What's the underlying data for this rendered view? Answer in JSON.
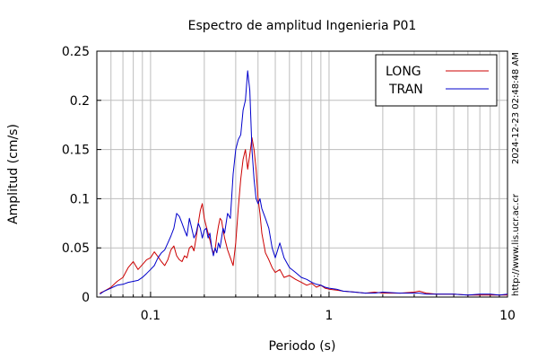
{
  "chart_data": {
    "type": "line",
    "title": "Espectro de amplitud Ingenieria P01",
    "xlabel": "Periodo (s)",
    "ylabel": "Amplitud (cm/s)",
    "xscale": "log",
    "xlim": [
      0.05,
      10
    ],
    "ylim": [
      0,
      0.25
    ],
    "x_ticks": [
      0.1,
      1,
      10
    ],
    "x_tick_labels": [
      "0.1",
      "1",
      "10"
    ],
    "y_ticks": [
      0,
      0.05,
      0.1,
      0.15,
      0.2,
      0.25
    ],
    "y_tick_labels": [
      "0",
      "0.05",
      "0.1",
      "0.15",
      "0.2",
      "0.25"
    ],
    "grid": true,
    "legend_position": "top-right",
    "timestamp": "2024-12-23 02:48:48 AM",
    "source_url": "http://www.lis.ucr.ac.cr",
    "series": [
      {
        "name": "LONG",
        "color": "#cc0000",
        "x": [
          0.052,
          0.055,
          0.06,
          0.065,
          0.07,
          0.075,
          0.08,
          0.085,
          0.09,
          0.095,
          0.1,
          0.105,
          0.11,
          0.115,
          0.12,
          0.125,
          0.13,
          0.135,
          0.14,
          0.145,
          0.15,
          0.155,
          0.16,
          0.165,
          0.17,
          0.175,
          0.18,
          0.185,
          0.19,
          0.195,
          0.2,
          0.205,
          0.21,
          0.215,
          0.22,
          0.225,
          0.23,
          0.235,
          0.24,
          0.245,
          0.25,
          0.255,
          0.26,
          0.27,
          0.28,
          0.29,
          0.3,
          0.31,
          0.32,
          0.33,
          0.34,
          0.35,
          0.36,
          0.37,
          0.38,
          0.39,
          0.4,
          0.41,
          0.42,
          0.44,
          0.46,
          0.48,
          0.5,
          0.53,
          0.56,
          0.6,
          0.65,
          0.7,
          0.75,
          0.8,
          0.85,
          0.9,
          0.95,
          1.0,
          1.1,
          1.2,
          1.4,
          1.6,
          1.8,
          2.0,
          2.5,
          3.0,
          3.2,
          3.5,
          4.0,
          5.0,
          6.0,
          7.0,
          8.0,
          9.0,
          10.0
        ],
        "values": [
          0.004,
          0.006,
          0.01,
          0.016,
          0.02,
          0.03,
          0.036,
          0.028,
          0.033,
          0.038,
          0.04,
          0.046,
          0.041,
          0.036,
          0.032,
          0.038,
          0.048,
          0.052,
          0.042,
          0.038,
          0.036,
          0.042,
          0.04,
          0.05,
          0.052,
          0.047,
          0.06,
          0.075,
          0.088,
          0.095,
          0.08,
          0.072,
          0.065,
          0.058,
          0.05,
          0.045,
          0.048,
          0.062,
          0.072,
          0.08,
          0.078,
          0.068,
          0.06,
          0.048,
          0.04,
          0.032,
          0.055,
          0.09,
          0.12,
          0.14,
          0.15,
          0.13,
          0.145,
          0.162,
          0.15,
          0.13,
          0.1,
          0.085,
          0.065,
          0.045,
          0.038,
          0.03,
          0.025,
          0.028,
          0.02,
          0.022,
          0.018,
          0.015,
          0.012,
          0.014,
          0.01,
          0.012,
          0.009,
          0.008,
          0.007,
          0.006,
          0.005,
          0.004,
          0.005,
          0.004,
          0.004,
          0.005,
          0.006,
          0.004,
          0.003,
          0.003,
          0.002,
          0.002,
          0.002,
          0.002,
          0.002
        ]
      },
      {
        "name": "TRAN",
        "color": "#0000cc",
        "x": [
          0.052,
          0.055,
          0.06,
          0.065,
          0.07,
          0.075,
          0.08,
          0.085,
          0.09,
          0.095,
          0.1,
          0.105,
          0.11,
          0.115,
          0.12,
          0.125,
          0.13,
          0.135,
          0.14,
          0.145,
          0.15,
          0.155,
          0.16,
          0.165,
          0.17,
          0.175,
          0.18,
          0.185,
          0.19,
          0.195,
          0.2,
          0.205,
          0.21,
          0.215,
          0.22,
          0.225,
          0.23,
          0.235,
          0.24,
          0.245,
          0.25,
          0.255,
          0.26,
          0.27,
          0.28,
          0.29,
          0.3,
          0.31,
          0.32,
          0.33,
          0.34,
          0.35,
          0.36,
          0.37,
          0.38,
          0.39,
          0.4,
          0.41,
          0.42,
          0.44,
          0.46,
          0.48,
          0.5,
          0.53,
          0.56,
          0.6,
          0.65,
          0.7,
          0.75,
          0.8,
          0.85,
          0.9,
          0.95,
          1.0,
          1.1,
          1.2,
          1.4,
          1.6,
          1.8,
          2.0,
          2.5,
          3.0,
          3.2,
          3.5,
          4.0,
          5.0,
          6.0,
          7.0,
          8.0,
          9.0,
          10.0
        ],
        "values": [
          0.003,
          0.006,
          0.009,
          0.012,
          0.013,
          0.015,
          0.016,
          0.017,
          0.02,
          0.024,
          0.028,
          0.032,
          0.04,
          0.045,
          0.048,
          0.055,
          0.062,
          0.07,
          0.085,
          0.082,
          0.075,
          0.068,
          0.062,
          0.08,
          0.07,
          0.06,
          0.065,
          0.075,
          0.07,
          0.06,
          0.068,
          0.07,
          0.06,
          0.065,
          0.05,
          0.042,
          0.05,
          0.045,
          0.055,
          0.05,
          0.06,
          0.07,
          0.065,
          0.085,
          0.08,
          0.125,
          0.15,
          0.16,
          0.165,
          0.19,
          0.2,
          0.23,
          0.21,
          0.15,
          0.12,
          0.1,
          0.095,
          0.1,
          0.09,
          0.08,
          0.07,
          0.05,
          0.04,
          0.055,
          0.04,
          0.03,
          0.025,
          0.02,
          0.018,
          0.015,
          0.013,
          0.012,
          0.01,
          0.009,
          0.008,
          0.006,
          0.005,
          0.004,
          0.004,
          0.005,
          0.004,
          0.004,
          0.004,
          0.003,
          0.003,
          0.003,
          0.002,
          0.003,
          0.003,
          0.002,
          0.003
        ]
      }
    ]
  }
}
